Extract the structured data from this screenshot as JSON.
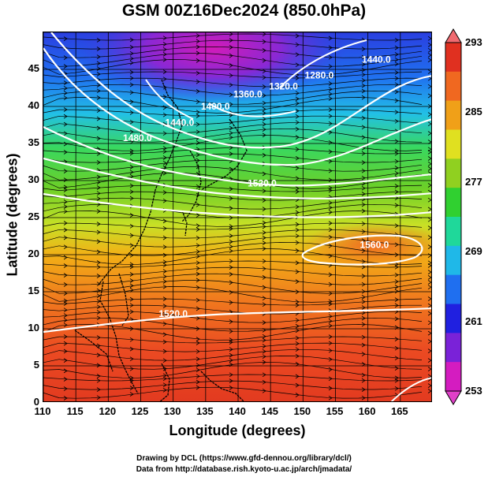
{
  "title": "GSM 00Z16Dec2024 (850.0hPa)",
  "xlabel": "Longitude (degrees)",
  "ylabel": "Latitude  (degrees)",
  "credit_line1": "Drawing by DCL (https://www.gfd-dennou.org/library/dcl/)",
  "credit_line2": "Data from http://database.rish.kyoto-u.ac.jp/arch/jmadata/",
  "chart_data": {
    "type": "heatmap",
    "title": "GSM 00Z16Dec2024 (850.0hPa)",
    "xlabel": "Longitude (degrees)",
    "ylabel": "Latitude  (degrees)",
    "xlim": [
      110,
      170
    ],
    "ylim": [
      0,
      50
    ],
    "x_ticks": [
      "110",
      "115",
      "120",
      "125",
      "130",
      "135",
      "140",
      "145",
      "150",
      "155",
      "160",
      "165"
    ],
    "y_ticks": [
      "0",
      "5",
      "10",
      "15",
      "20",
      "25",
      "30",
      "35",
      "40",
      "45"
    ],
    "colorbar": {
      "min": 253,
      "max": 293,
      "labels": [
        "293",
        "285",
        "277",
        "269",
        "261",
        "253"
      ],
      "colors": [
        "#d41cc0",
        "#7a22d8",
        "#2020e0",
        "#1f6ff0",
        "#1fb8e8",
        "#1fd89a",
        "#30d030",
        "#90d020",
        "#e0e020",
        "#f0a018",
        "#f06820",
        "#e03020"
      ]
    },
    "contour_labels": [
      "1280.0",
      "1320.0",
      "1360.0",
      "1400.0",
      "1440.0",
      "1480.0",
      "1520.0",
      "1560.0",
      "1520.0",
      "1440.0"
    ],
    "contour_label_positions": [
      {
        "label": "1280.0",
        "lon": 152.5,
        "lat": 43.8
      },
      {
        "label": "1320.0",
        "lon": 147.0,
        "lat": 42.3
      },
      {
        "label": "1360.0",
        "lon": 141.5,
        "lat": 41.2
      },
      {
        "label": "1400.0",
        "lon": 136.5,
        "lat": 39.6
      },
      {
        "label": "1440.0",
        "lon": 131.0,
        "lat": 37.4
      },
      {
        "label": "1480.0",
        "lon": 124.5,
        "lat": 35.3
      },
      {
        "label": "1520.0",
        "lon": 143.7,
        "lat": 29.2
      },
      {
        "label": "1560.0",
        "lon": 161.0,
        "lat": 20.9
      },
      {
        "label": "1520.0",
        "lon": 130.0,
        "lat": 11.6
      },
      {
        "label": "1440.0",
        "lon": 161.3,
        "lat": 45.9
      }
    ]
  }
}
